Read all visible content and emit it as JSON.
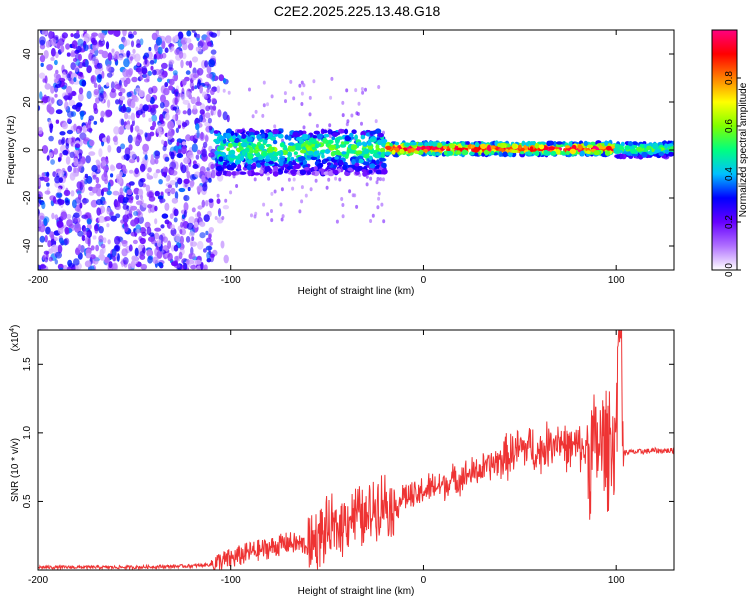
{
  "title": "C2E2.2025.225.13.48.G18",
  "chart_data": [
    {
      "type": "heatmap",
      "xlabel": "Height of straight line (km)",
      "ylabel": "Frequency (Hz)",
      "xlim": [
        -200,
        130
      ],
      "ylim": [
        -50,
        50
      ],
      "xticks": [
        -200,
        -100,
        0,
        100
      ],
      "yticks": [
        40,
        20,
        0,
        -20,
        -40
      ],
      "colorbar": {
        "label": "Normalized spectral amplitude",
        "range": [
          0,
          1
        ],
        "ticks": [
          "0.0",
          "0.2",
          "0.4",
          "0.6",
          "0.8"
        ],
        "colors": [
          "#ffffff",
          "#b070ff",
          "#6600ff",
          "#0000ff",
          "#00c0ff",
          "#00ff80",
          "#80ff00",
          "#ffff00",
          "#ff8000",
          "#ff0000",
          "#ff0080"
        ]
      },
      "regions": [
        {
          "x": [
            -200,
            -108
          ],
          "freq_range": [
            -50,
            50
          ],
          "amplitude": "low, scattered (0.1-0.3)"
        },
        {
          "x": [
            -108,
            -20
          ],
          "freq_range": [
            -10,
            8
          ],
          "amplitude": "0.2-0.6"
        },
        {
          "x": [
            -20,
            100
          ],
          "freq_range": [
            -2,
            3
          ],
          "amplitude": "0.6-1.0, peak near 0 Hz"
        },
        {
          "x": [
            100,
            130
          ],
          "freq_range": [
            -3,
            3
          ],
          "amplitude": "0.4-0.6"
        }
      ]
    },
    {
      "type": "line",
      "xlabel": "Height of straight line (km)",
      "ylabel": "SNR (10 * v/v)",
      "yscale_label": "(x10",
      "yscale_exp": "4",
      "yscale_close": ")",
      "xlim": [
        -200,
        130
      ],
      "ylim": [
        0,
        1.75
      ],
      "xticks": [
        -200,
        -100,
        0,
        100
      ],
      "yticks": [
        "0.5",
        "1.0",
        "1.5"
      ],
      "ytick_values": [
        0.5,
        1.0,
        1.5
      ],
      "color": "#ee3333",
      "series": [
        {
          "x": [
            -200,
            -150,
            -120,
            -110,
            -100,
            -90,
            -80,
            -70,
            -60,
            -50,
            -45,
            -40,
            -35,
            -30,
            -25,
            -20,
            -15,
            -10,
            -5,
            0,
            10,
            20,
            30,
            40,
            50,
            55,
            60,
            65,
            70,
            75,
            80,
            85,
            90,
            95,
            98,
            100,
            102,
            104,
            106,
            110,
            120,
            130
          ],
          "y": [
            0.02,
            0.02,
            0.03,
            0.04,
            0.08,
            0.13,
            0.16,
            0.2,
            0.18,
            0.28,
            0.3,
            0.38,
            0.42,
            0.35,
            0.48,
            0.5,
            0.45,
            0.55,
            0.52,
            0.58,
            0.62,
            0.68,
            0.73,
            0.8,
            0.88,
            0.9,
            0.85,
            0.92,
            0.96,
            0.88,
            0.9,
            0.86,
            0.9,
            0.92,
            0.95,
            1.0,
            1.2,
            0.85,
            0.86,
            0.86,
            0.87,
            0.87
          ]
        }
      ]
    }
  ]
}
